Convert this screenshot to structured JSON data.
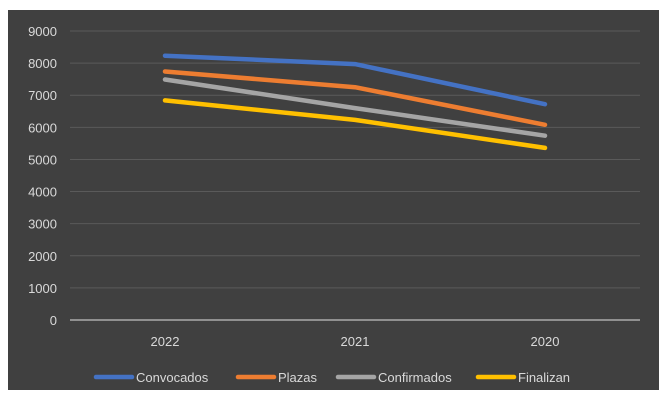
{
  "chart_data": {
    "type": "line",
    "title": "",
    "xlabel": "",
    "ylabel": "",
    "categories": [
      "2022",
      "2021",
      "2020"
    ],
    "ylim": [
      0,
      9000
    ],
    "yticks": [
      0,
      1000,
      2000,
      3000,
      4000,
      5000,
      6000,
      7000,
      8000,
      9000
    ],
    "grid": true,
    "legend_position": "bottom",
    "background": "#404040",
    "series": [
      {
        "name": "Convocados",
        "color": "#4472C4",
        "values": [
          8230,
          7970,
          6720
        ]
      },
      {
        "name": "Plazas",
        "color": "#ED7D31",
        "values": [
          7740,
          7250,
          6080
        ]
      },
      {
        "name": "Confirmados",
        "color": "#A5A5A5",
        "values": [
          7490,
          6600,
          5740
        ]
      },
      {
        "name": "Finalizan",
        "color": "#FFC000",
        "values": [
          6840,
          6230,
          5360
        ]
      }
    ]
  }
}
